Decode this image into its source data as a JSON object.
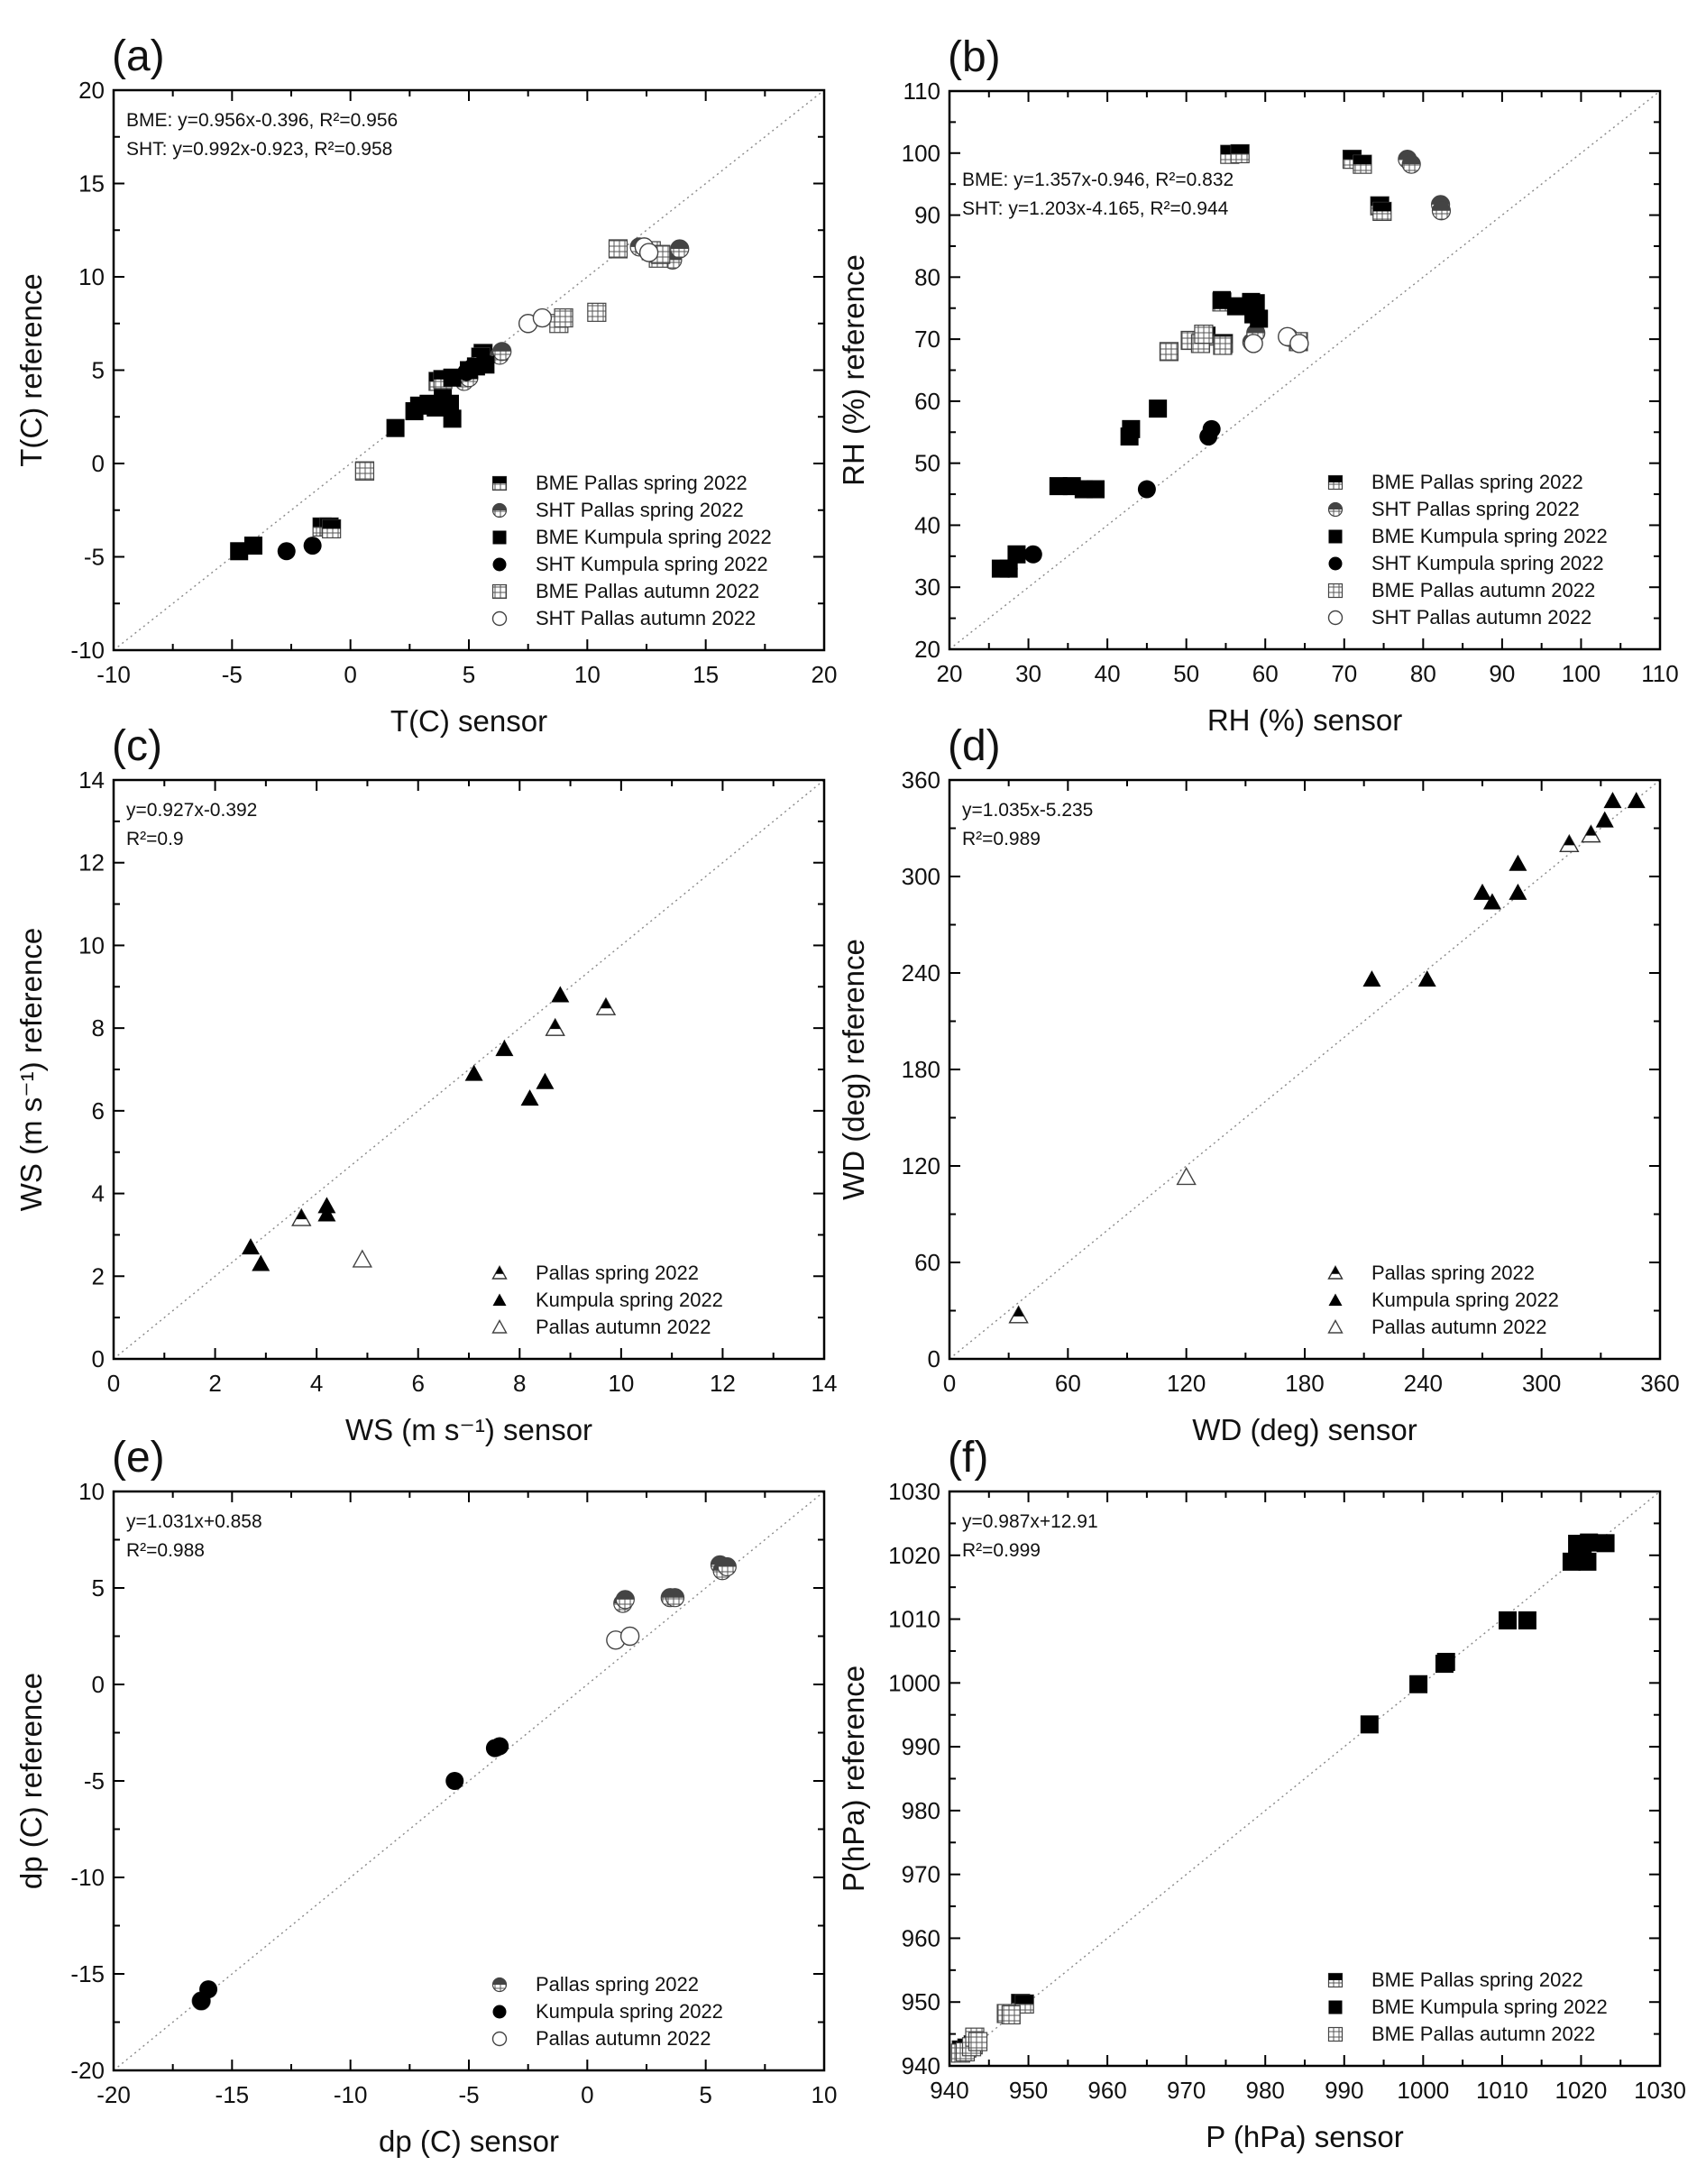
{
  "chart_data": [
    {
      "id": "a",
      "type": "scatter",
      "panel_label": "(a)",
      "xlabel": "T(C) sensor",
      "ylabel": "T(C) reference",
      "xlim": [
        -10,
        20
      ],
      "ylim": [
        -10,
        20
      ],
      "xticks": [
        -10,
        -5,
        0,
        5,
        10,
        15,
        20
      ],
      "yticks": [
        -10,
        -5,
        0,
        5,
        10,
        15,
        20
      ],
      "one_to_one_line": true,
      "equations": [
        "BME: y=0.956x-0.396, R²=0.956",
        "SHT: y=0.992x-0.923, R²=0.958"
      ],
      "legend_position": "bottom-right",
      "series": [
        {
          "name": "BME Pallas spring 2022",
          "marker": "square-half",
          "points": [
            [
              -1.2,
              -3.4
            ],
            [
              -0.9,
              -3.4
            ],
            [
              -0.8,
              -3.5
            ],
            [
              0.6,
              -0.4
            ],
            [
              3.7,
              4.4
            ],
            [
              3.9,
              4.5
            ],
            [
              5.6,
              5.9
            ],
            [
              5.5,
              5.7
            ]
          ]
        },
        {
          "name": "SHT Pallas spring 2022",
          "marker": "circle-half",
          "points": [
            [
              4.8,
              4.4
            ],
            [
              5.0,
              4.6
            ],
            [
              6.3,
              5.8
            ],
            [
              6.4,
              6.0
            ],
            [
              12.2,
              11.6
            ],
            [
              13.6,
              10.9
            ],
            [
              13.9,
              11.5
            ]
          ]
        },
        {
          "name": "BME Kumpula spring 2022",
          "marker": "square-filled",
          "points": [
            [
              -4.7,
              -4.7
            ],
            [
              -4.1,
              -4.4
            ],
            [
              1.9,
              1.9
            ],
            [
              2.7,
              2.8
            ],
            [
              2.9,
              3.1
            ],
            [
              3.3,
              3.2
            ],
            [
              3.6,
              3.0
            ],
            [
              3.9,
              3.5
            ],
            [
              4.2,
              3.2
            ],
            [
              4.3,
              2.4
            ],
            [
              4.3,
              4.6
            ],
            [
              5.0,
              5.0
            ],
            [
              5.3,
              5.2
            ],
            [
              5.7,
              5.3
            ]
          ]
        },
        {
          "name": "SHT Kumpula spring 2022",
          "marker": "circle-filled",
          "points": [
            [
              -2.7,
              -4.7
            ],
            [
              -1.6,
              -4.4
            ],
            [
              4.9,
              4.9
            ],
            [
              5.1,
              5.1
            ],
            [
              5.2,
              5.2
            ]
          ]
        },
        {
          "name": "BME Pallas autumn 2022",
          "marker": "square-open",
          "points": [
            [
              0.6,
              -0.4
            ],
            [
              8.8,
              7.5
            ],
            [
              9.0,
              7.8
            ],
            [
              10.4,
              8.1
            ],
            [
              11.3,
              11.5
            ],
            [
              12.7,
              11.4
            ],
            [
              13.0,
              11.0
            ],
            [
              13.1,
              11.2
            ]
          ]
        },
        {
          "name": "SHT Pallas autumn 2022",
          "marker": "circle-open",
          "points": [
            [
              7.5,
              7.5
            ],
            [
              8.1,
              7.8
            ],
            [
              12.4,
              11.6
            ],
            [
              12.6,
              11.3
            ]
          ]
        }
      ]
    },
    {
      "id": "b",
      "type": "scatter",
      "panel_label": "(b)",
      "xlabel": "RH (%) sensor",
      "ylabel": "RH (%) reference",
      "xlim": [
        20,
        110
      ],
      "ylim": [
        20,
        110
      ],
      "xticks": [
        20,
        30,
        40,
        50,
        60,
        70,
        80,
        90,
        100,
        110
      ],
      "yticks": [
        20,
        30,
        40,
        50,
        60,
        70,
        80,
        90,
        100,
        110
      ],
      "one_to_one_line": true,
      "equations": [
        "BME: y=1.357x-0.946, R²=0.832",
        "SHT: y=1.203x-4.165, R²=0.944"
      ],
      "legend_position": "bottom-right",
      "series": [
        {
          "name": "BME Pallas spring 2022",
          "marker": "square-half",
          "points": [
            [
              55.5,
              99.8
            ],
            [
              56.8,
              99.9
            ],
            [
              54.5,
              76.0
            ],
            [
              52.5,
              70.5
            ],
            [
              54.7,
              69.3
            ],
            [
              71.0,
              99.0
            ],
            [
              72.3,
              98.2
            ],
            [
              74.5,
              91.5
            ],
            [
              74.8,
              90.6
            ]
          ]
        },
        {
          "name": "SHT Pallas spring 2022",
          "marker": "circle-half",
          "points": [
            [
              58.3,
              69.5
            ],
            [
              58.8,
              71.0
            ],
            [
              63.0,
              70.3
            ],
            [
              78.0,
              99.0
            ],
            [
              78.5,
              98.2
            ],
            [
              82.2,
              91.7
            ],
            [
              82.3,
              90.7
            ]
          ]
        },
        {
          "name": "BME Kumpula spring 2022",
          "marker": "square-filled",
          "points": [
            [
              26.5,
              33.0
            ],
            [
              27.5,
              33.0
            ],
            [
              28.5,
              35.3
            ],
            [
              33.8,
              46.3
            ],
            [
              35.5,
              46.3
            ],
            [
              37.0,
              45.8
            ],
            [
              38.5,
              45.8
            ],
            [
              42.8,
              54.3
            ],
            [
              43.0,
              55.5
            ],
            [
              46.4,
              58.8
            ],
            [
              54.5,
              76.3
            ],
            [
              56.3,
              75.3
            ],
            [
              58.2,
              76.0
            ],
            [
              58.8,
              75.8
            ],
            [
              58.5,
              74.0
            ],
            [
              59.2,
              73.3
            ]
          ]
        },
        {
          "name": "SHT Kumpula spring 2022",
          "marker": "circle-filled",
          "points": [
            [
              27.5,
              33.0
            ],
            [
              30.6,
              35.3
            ],
            [
              45.0,
              45.8
            ],
            [
              52.8,
              54.3
            ],
            [
              53.2,
              55.5
            ]
          ]
        },
        {
          "name": "BME Pallas autumn 2022",
          "marker": "square-open",
          "points": [
            [
              47.8,
              68.0
            ],
            [
              50.5,
              69.8
            ],
            [
              51.8,
              69.3
            ],
            [
              52.2,
              70.8
            ],
            [
              54.6,
              69.0
            ],
            [
              64.2,
              69.6
            ]
          ]
        },
        {
          "name": "SHT Pallas autumn 2022",
          "marker": "circle-open",
          "points": [
            [
              58.5,
              69.3
            ],
            [
              62.8,
              70.4
            ],
            [
              64.3,
              69.3
            ]
          ]
        }
      ]
    },
    {
      "id": "c",
      "type": "scatter",
      "panel_label": "(c)",
      "xlabel": "WS (m s⁻¹) sensor",
      "ylabel": "WS (m s⁻¹) reference",
      "xlim": [
        0,
        14
      ],
      "ylim": [
        0,
        14
      ],
      "xticks": [
        0,
        2,
        4,
        6,
        8,
        10,
        12,
        14
      ],
      "yticks": [
        0,
        2,
        4,
        6,
        8,
        10,
        12,
        14
      ],
      "one_to_one_line": true,
      "equations": [
        "y=0.927x-0.392",
        "R²=0.9"
      ],
      "legend_position": "bottom-right",
      "series": [
        {
          "name": "Pallas spring 2022",
          "marker": "triangle-half",
          "points": [
            [
              3.7,
              3.4
            ],
            [
              8.7,
              8.0
            ],
            [
              9.7,
              8.5
            ]
          ]
        },
        {
          "name": "Kumpula spring 2022",
          "marker": "triangle-filled",
          "points": [
            [
              2.7,
              2.7
            ],
            [
              2.9,
              2.3
            ],
            [
              4.2,
              3.7
            ],
            [
              4.2,
              3.5
            ],
            [
              7.1,
              6.9
            ],
            [
              7.7,
              7.5
            ],
            [
              8.2,
              6.3
            ],
            [
              8.5,
              6.7
            ],
            [
              8.8,
              8.8
            ]
          ]
        },
        {
          "name": "Pallas autumn 2022",
          "marker": "triangle-open",
          "points": [
            [
              4.9,
              2.4
            ]
          ]
        }
      ]
    },
    {
      "id": "d",
      "type": "scatter",
      "panel_label": "(d)",
      "xlabel": "WD (deg) sensor",
      "ylabel": "WD (deg) reference",
      "xlim": [
        0,
        360
      ],
      "ylim": [
        0,
        360
      ],
      "xticks": [
        0,
        60,
        120,
        180,
        240,
        300,
        360
      ],
      "yticks": [
        0,
        60,
        120,
        180,
        240,
        300,
        360
      ],
      "one_to_one_line": true,
      "equations": [
        "y=1.035x-5.235",
        "R²=0.989"
      ],
      "legend_position": "bottom-right",
      "series": [
        {
          "name": "Pallas spring 2022",
          "marker": "triangle-half",
          "points": [
            [
              35,
              27
            ],
            [
              314,
              320
            ],
            [
              325,
              326
            ]
          ]
        },
        {
          "name": "Kumpula spring 2022",
          "marker": "triangle-filled",
          "points": [
            [
              214,
              236
            ],
            [
              242,
              236
            ],
            [
              270,
              290
            ],
            [
              275,
              284
            ],
            [
              288,
              290
            ],
            [
              288,
              308
            ],
            [
              332,
              335
            ],
            [
              336,
              347
            ],
            [
              348,
              347
            ]
          ]
        },
        {
          "name": "Pallas autumn 2022",
          "marker": "triangle-open",
          "points": [
            [
              120,
              113
            ]
          ]
        }
      ]
    },
    {
      "id": "e",
      "type": "scatter",
      "panel_label": "(e)",
      "xlabel": "dp (C) sensor",
      "ylabel": "dp (C) reference",
      "xlim": [
        -20,
        10
      ],
      "ylim": [
        -20,
        10
      ],
      "xticks": [
        -20,
        -15,
        -10,
        -5,
        0,
        5,
        10
      ],
      "yticks": [
        -20,
        -15,
        -10,
        -5,
        0,
        5,
        10
      ],
      "one_to_one_line": true,
      "equations": [
        "y=1.031x+0.858",
        "R²=0.988"
      ],
      "legend_position": "bottom-right",
      "series": [
        {
          "name": "Pallas spring 2022",
          "marker": "circle-half",
          "points": [
            [
              -16.3,
              -16.4
            ],
            [
              1.5,
              4.2
            ],
            [
              1.6,
              4.4
            ],
            [
              3.5,
              4.5
            ],
            [
              3.7,
              4.5
            ],
            [
              5.6,
              6.2
            ],
            [
              5.7,
              5.9
            ],
            [
              5.9,
              6.1
            ]
          ]
        },
        {
          "name": "Kumpula spring 2022",
          "marker": "circle-filled",
          "points": [
            [
              -16.0,
              -15.8
            ],
            [
              -16.3,
              -16.4
            ],
            [
              -5.6,
              -5.0
            ],
            [
              -3.9,
              -3.3
            ],
            [
              -3.7,
              -3.2
            ]
          ]
        },
        {
          "name": "Pallas autumn 2022",
          "marker": "circle-open",
          "points": [
            [
              1.2,
              2.3
            ],
            [
              1.8,
              2.5
            ]
          ]
        }
      ]
    },
    {
      "id": "f",
      "type": "scatter",
      "panel_label": "(f)",
      "xlabel": "P (hPa) sensor",
      "ylabel": "P(hPa) reference",
      "xlim": [
        940,
        1030
      ],
      "ylim": [
        940,
        1030
      ],
      "xticks": [
        940,
        950,
        960,
        970,
        980,
        990,
        1000,
        1010,
        1020,
        1030
      ],
      "yticks": [
        940,
        950,
        960,
        970,
        980,
        990,
        1000,
        1010,
        1020,
        1030
      ],
      "one_to_one_line": true,
      "equations": [
        "y=0.987x+12.91",
        "R²=0.999"
      ],
      "legend_position": "bottom-right",
      "series": [
        {
          "name": "BME Pallas spring 2022",
          "marker": "square-half",
          "points": [
            [
              941.5,
              942.5
            ],
            [
              942.2,
              942.8
            ],
            [
              943.0,
              943.3
            ],
            [
              949.0,
              949.8
            ],
            [
              949.5,
              949.7
            ]
          ]
        },
        {
          "name": "BME Kumpula spring 2022",
          "marker": "square-filled",
          "points": [
            [
              993.2,
              993.5
            ],
            [
              999.4,
              999.8
            ],
            [
              1002.7,
              1003.0
            ],
            [
              1002.9,
              1003.3
            ],
            [
              1010.7,
              1009.8
            ],
            [
              1013.2,
              1009.8
            ],
            [
              1018.8,
              1019.0
            ],
            [
              1019.5,
              1021.8
            ],
            [
              1020.2,
              1021.8
            ],
            [
              1020.8,
              1019.0
            ],
            [
              1021.0,
              1022.0
            ],
            [
              1023.1,
              1021.9
            ]
          ]
        },
        {
          "name": "BME Pallas autumn 2022",
          "marker": "square-open",
          "points": [
            [
              941.4,
              942.0
            ],
            [
              942.0,
              942.2
            ],
            [
              942.8,
              943.0
            ],
            [
              943.2,
              944.5
            ],
            [
              943.6,
              943.8
            ],
            [
              947.2,
              948.2
            ],
            [
              947.8,
              948.0
            ]
          ]
        }
      ]
    }
  ]
}
